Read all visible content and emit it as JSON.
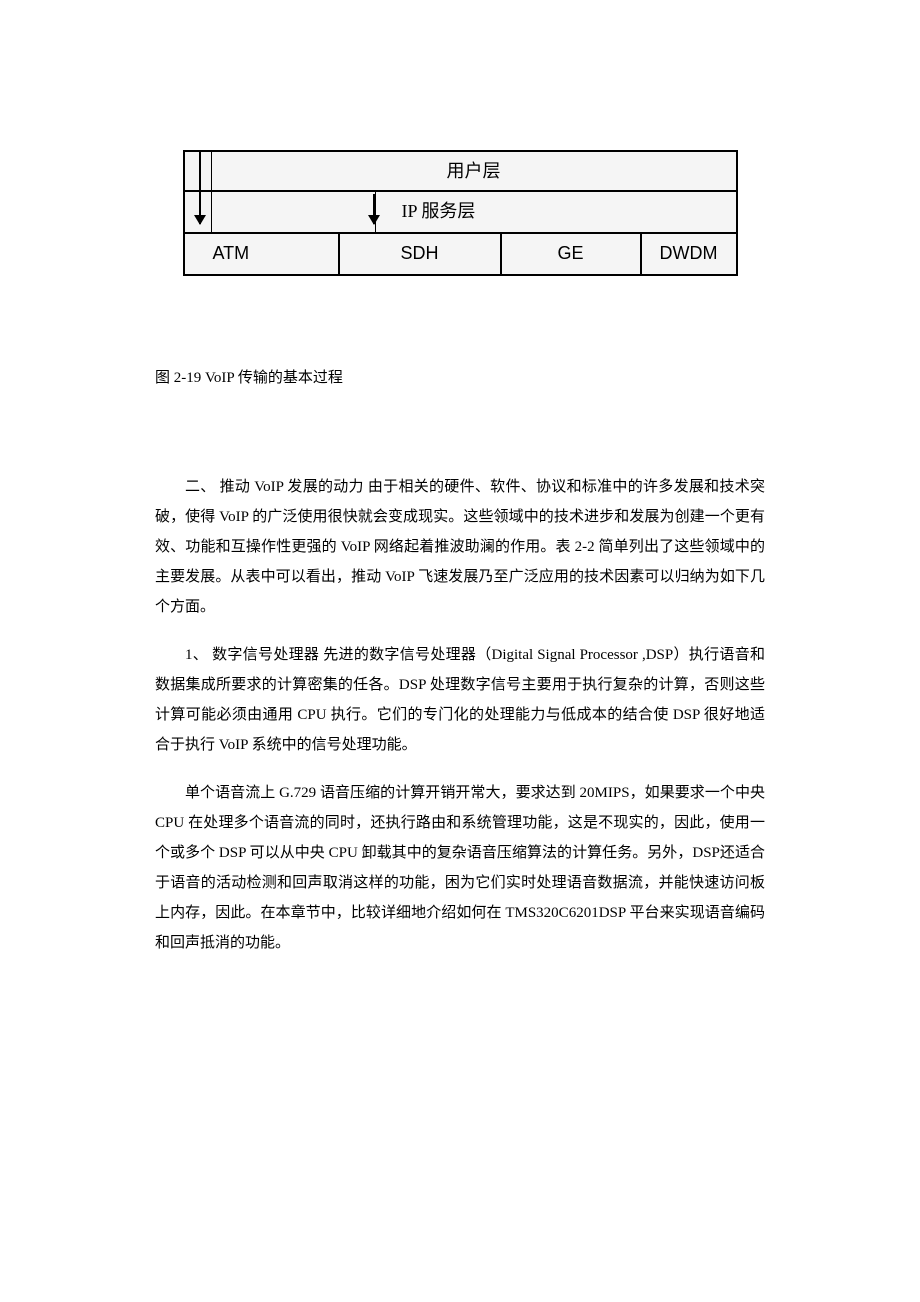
{
  "diagram": {
    "row1_label": "用户层",
    "row2_label": "IP 服务层",
    "row3_cells": [
      "ATM",
      "SDH",
      "GE",
      "DWDM"
    ],
    "border_color": "#000000",
    "background_color": "#f5f5f5",
    "font_size": 18
  },
  "caption": "图 2-19 VoIP 传输的基本过程",
  "paragraphs": {
    "p1": "二、  推动 VoIP 发展的动力  由于相关的硬件、软件、协议和标准中的许多发展和技术突破，使得 VoIP 的广泛使用很快就会变成现实。这些领域中的技术进步和发展为创建一个更有效、功能和互操作性更强的 VoIP 网络起着推波助澜的作用。表 2-2 简单列出了这些领域中的主要发展。从表中可以看出，推动 VoIP 飞速发展乃至广泛应用的技术因素可以归纳为如下几个方面。",
    "p2": "1、  数字信号处理器  先进的数字信号处理器（Digital Signal Processor ,DSP）执行语音和数据集成所要求的计算密集的任各。DSP 处理数字信号主要用于执行复杂的计算，否则这些计算可能必须由通用 CPU 执行。它们的专门化的处理能力与低成本的结合使 DSP 很好地适合于执行 VoIP 系统中的信号处理功能。",
    "p3": "单个语音流上 G.729 语音压缩的计算开销开常大，要求达到 20MIPS，如果要求一个中央 CPU 在处理多个语音流的同时，还执行路由和系统管理功能，这是不现实的，因此，使用一个或多个 DSP 可以从中央 CPU 卸载其中的复杂语音压缩算法的计算任务。另外，DSP还适合于语音的活动检测和回声取消这样的功能，困为它们实时处理语音数据流，并能快速访问板上内存，因此。在本章节中，比较详细地介绍如何在 TMS320C6201DSP 平台来实现语音编码和回声抵消的功能。"
  },
  "colors": {
    "page_background": "#ffffff",
    "text": "#000000"
  }
}
